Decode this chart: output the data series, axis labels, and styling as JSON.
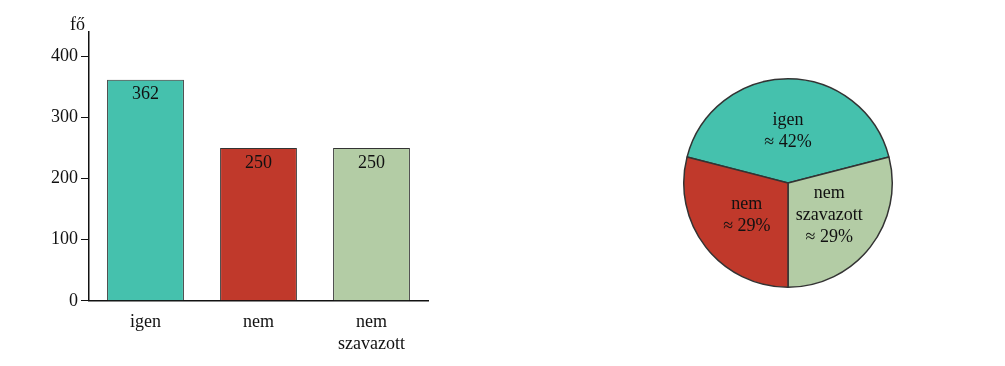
{
  "chart_data": [
    {
      "type": "bar",
      "ylabel": "fő",
      "categories": [
        "igen",
        "nem",
        "nem szavazott"
      ],
      "values": [
        362,
        250,
        250
      ],
      "colors": [
        "#45c1ad",
        "#c0392b",
        "#b3cca5"
      ],
      "ylim": [
        0,
        440
      ],
      "yticks": [
        0,
        100,
        200,
        300,
        400
      ],
      "data_labels": true,
      "grid": false,
      "legend": false
    },
    {
      "type": "pie",
      "categories": [
        "igen",
        "nem szavazott",
        "nem"
      ],
      "values": [
        42,
        29,
        29
      ],
      "value_labels": [
        "≈ 42%",
        "≈ 29%",
        "≈ 29%"
      ],
      "colors": [
        "#45c1ad",
        "#b3cca5",
        "#c0392b"
      ],
      "legend": false
    }
  ]
}
